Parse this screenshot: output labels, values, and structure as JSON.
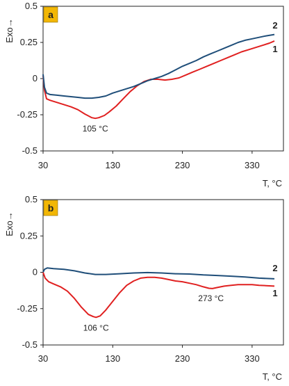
{
  "colors": {
    "series_1": "#e02020",
    "series_2": "#1f4e79",
    "badge": "#f2b705",
    "axis": "#222222"
  },
  "chart_data": [
    {
      "type": "line",
      "panel_label": "a",
      "ylabel": "Exo→",
      "xlabel": "T, °C",
      "xlim": [
        30,
        375
      ],
      "ylim": [
        -0.5,
        0.5
      ],
      "xticks": [
        "30",
        "130",
        "230",
        "330"
      ],
      "yticks": [
        "-0.5",
        "-0.25",
        "0",
        "0.25",
        "0.5"
      ],
      "grid": false,
      "series": [
        {
          "name": "1",
          "points": [
            [
              30,
              0.02
            ],
            [
              32,
              -0.08
            ],
            [
              35,
              -0.14
            ],
            [
              40,
              -0.15
            ],
            [
              50,
              -0.165
            ],
            [
              60,
              -0.18
            ],
            [
              70,
              -0.195
            ],
            [
              80,
              -0.215
            ],
            [
              90,
              -0.245
            ],
            [
              100,
              -0.27
            ],
            [
              105,
              -0.275
            ],
            [
              110,
              -0.27
            ],
            [
              118,
              -0.255
            ],
            [
              125,
              -0.23
            ],
            [
              135,
              -0.19
            ],
            [
              145,
              -0.14
            ],
            [
              155,
              -0.09
            ],
            [
              165,
              -0.05
            ],
            [
              175,
              -0.02
            ],
            [
              185,
              -0.005
            ],
            [
              195,
              -0.005
            ],
            [
              205,
              -0.01
            ],
            [
              215,
              -0.005
            ],
            [
              225,
              0.005
            ],
            [
              235,
              0.025
            ],
            [
              245,
              0.045
            ],
            [
              255,
              0.065
            ],
            [
              265,
              0.085
            ],
            [
              275,
              0.105
            ],
            [
              285,
              0.125
            ],
            [
              295,
              0.145
            ],
            [
              305,
              0.165
            ],
            [
              315,
              0.185
            ],
            [
              325,
              0.2
            ],
            [
              335,
              0.215
            ],
            [
              345,
              0.23
            ],
            [
              355,
              0.245
            ],
            [
              362,
              0.26
            ]
          ]
        },
        {
          "name": "2",
          "points": [
            [
              30,
              0.03
            ],
            [
              32,
              -0.06
            ],
            [
              35,
              -0.1
            ],
            [
              40,
              -0.11
            ],
            [
              50,
              -0.115
            ],
            [
              60,
              -0.12
            ],
            [
              70,
              -0.125
            ],
            [
              80,
              -0.13
            ],
            [
              90,
              -0.135
            ],
            [
              100,
              -0.135
            ],
            [
              110,
              -0.13
            ],
            [
              120,
              -0.12
            ],
            [
              130,
              -0.1
            ],
            [
              140,
              -0.085
            ],
            [
              150,
              -0.07
            ],
            [
              160,
              -0.055
            ],
            [
              170,
              -0.035
            ],
            [
              180,
              -0.015
            ],
            [
              190,
              0.0
            ],
            [
              200,
              0.015
            ],
            [
              210,
              0.035
            ],
            [
              220,
              0.06
            ],
            [
              230,
              0.085
            ],
            [
              240,
              0.105
            ],
            [
              250,
              0.125
            ],
            [
              260,
              0.15
            ],
            [
              270,
              0.17
            ],
            [
              280,
              0.19
            ],
            [
              290,
              0.21
            ],
            [
              300,
              0.23
            ],
            [
              310,
              0.25
            ],
            [
              320,
              0.265
            ],
            [
              330,
              0.275
            ],
            [
              340,
              0.285
            ],
            [
              350,
              0.295
            ],
            [
              362,
              0.305
            ]
          ]
        }
      ],
      "annotations": [
        {
          "text": "105 °C",
          "x": 105,
          "y": -0.275
        }
      ]
    },
    {
      "type": "line",
      "panel_label": "b",
      "ylabel": "Exo→",
      "xlabel": "T, °C",
      "xlim": [
        30,
        375
      ],
      "ylim": [
        -0.5,
        0.5
      ],
      "xticks": [
        "30",
        "130",
        "230",
        "330"
      ],
      "yticks": [
        "-0.5",
        "-0.25",
        "0",
        "0.25",
        "0.5"
      ],
      "grid": false,
      "series": [
        {
          "name": "1",
          "points": [
            [
              30,
              0.0
            ],
            [
              33,
              -0.04
            ],
            [
              38,
              -0.065
            ],
            [
              45,
              -0.08
            ],
            [
              55,
              -0.1
            ],
            [
              65,
              -0.13
            ],
            [
              75,
              -0.18
            ],
            [
              85,
              -0.24
            ],
            [
              95,
              -0.29
            ],
            [
              102,
              -0.305
            ],
            [
              106,
              -0.31
            ],
            [
              112,
              -0.3
            ],
            [
              120,
              -0.26
            ],
            [
              130,
              -0.2
            ],
            [
              140,
              -0.14
            ],
            [
              150,
              -0.09
            ],
            [
              160,
              -0.06
            ],
            [
              170,
              -0.04
            ],
            [
              180,
              -0.035
            ],
            [
              190,
              -0.035
            ],
            [
              200,
              -0.04
            ],
            [
              210,
              -0.05
            ],
            [
              220,
              -0.06
            ],
            [
              230,
              -0.065
            ],
            [
              240,
              -0.075
            ],
            [
              250,
              -0.085
            ],
            [
              260,
              -0.1
            ],
            [
              268,
              -0.11
            ],
            [
              273,
              -0.112
            ],
            [
              280,
              -0.105
            ],
            [
              290,
              -0.095
            ],
            [
              300,
              -0.09
            ],
            [
              310,
              -0.085
            ],
            [
              320,
              -0.085
            ],
            [
              330,
              -0.085
            ],
            [
              340,
              -0.09
            ],
            [
              350,
              -0.092
            ],
            [
              362,
              -0.095
            ]
          ]
        },
        {
          "name": "2",
          "points": [
            [
              30,
              0.0
            ],
            [
              32,
              0.02
            ],
            [
              36,
              0.03
            ],
            [
              45,
              0.025
            ],
            [
              60,
              0.02
            ],
            [
              75,
              0.01
            ],
            [
              90,
              -0.005
            ],
            [
              105,
              -0.015
            ],
            [
              120,
              -0.015
            ],
            [
              140,
              -0.01
            ],
            [
              160,
              -0.005
            ],
            [
              180,
              -0.002
            ],
            [
              200,
              -0.005
            ],
            [
              220,
              -0.01
            ],
            [
              240,
              -0.012
            ],
            [
              260,
              -0.018
            ],
            [
              280,
              -0.022
            ],
            [
              300,
              -0.027
            ],
            [
              320,
              -0.032
            ],
            [
              340,
              -0.04
            ],
            [
              362,
              -0.045
            ]
          ]
        }
      ],
      "annotations": [
        {
          "text": "106 °C",
          "x": 106,
          "y": -0.31
        },
        {
          "text": "273 °C",
          "x": 273,
          "y": -0.112
        }
      ]
    }
  ]
}
